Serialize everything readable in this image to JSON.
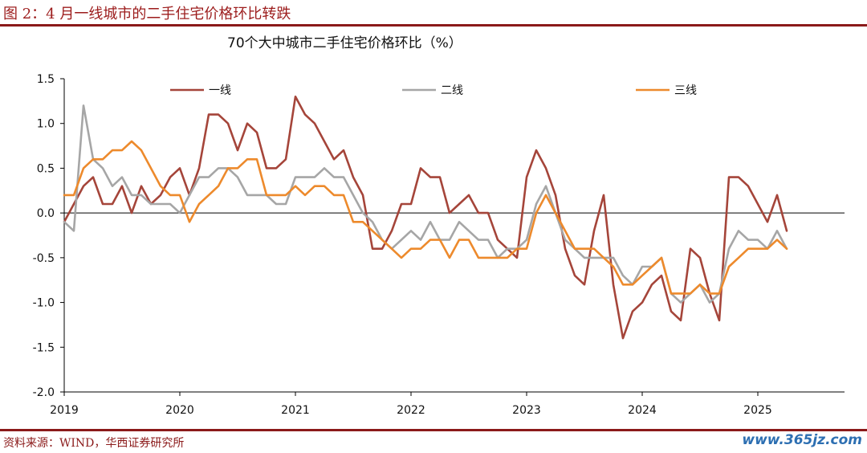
{
  "figure_title": "图 2：4 月一线城市的二手住宅价格环比转跌",
  "source": "资料来源：WIND，华西证券研究所",
  "watermark": "www.365jz.com",
  "colors": {
    "tier1": "#a5453a",
    "tier2": "#a6a6a6",
    "tier3": "#ed8a2c",
    "rule": "#8b1a1a"
  },
  "chart_data": {
    "type": "line",
    "title": "70个大中城市二手住宅价格环比（%）",
    "xlabel": "",
    "ylabel": "",
    "ylim": [
      -2.0,
      1.5
    ],
    "yticks": [
      1.5,
      1.0,
      0.5,
      0.0,
      -0.5,
      -1.0,
      -1.5,
      -2.0
    ],
    "ytick_labels": [
      "1.5",
      "1.0",
      "0.5",
      "0.0",
      "-0.5",
      "-1.0",
      "-1.5",
      "-2.0"
    ],
    "x_start": "2019-01",
    "xtick_labels": [
      "2019",
      "2020",
      "2021",
      "2022",
      "2023",
      "2024",
      "2025"
    ],
    "grid": false,
    "legend_position": "top",
    "series": [
      {
        "name": "一线",
        "color_key": "tier1",
        "values": [
          -0.1,
          0.1,
          0.3,
          0.4,
          0.1,
          0.1,
          0.3,
          0.0,
          0.3,
          0.1,
          0.2,
          0.4,
          0.5,
          0.2,
          0.5,
          1.1,
          1.1,
          1.0,
          0.7,
          1.0,
          0.9,
          0.5,
          0.5,
          0.6,
          1.3,
          1.1,
          1.0,
          0.8,
          0.6,
          0.7,
          0.4,
          0.2,
          -0.4,
          -0.4,
          -0.2,
          0.1,
          0.1,
          0.5,
          0.4,
          0.4,
          0.0,
          0.1,
          0.2,
          0.0,
          0.0,
          -0.3,
          -0.4,
          -0.5,
          0.4,
          0.7,
          0.5,
          0.2,
          -0.4,
          -0.7,
          -0.8,
          -0.2,
          0.2,
          -0.8,
          -1.4,
          -1.1,
          -1.0,
          -0.8,
          -0.7,
          -1.1,
          -1.2,
          -0.4,
          -0.5,
          -0.9,
          -1.2,
          0.4,
          0.4,
          0.3,
          0.1,
          -0.1,
          0.2,
          -0.2
        ]
      },
      {
        "name": "二线",
        "color_key": "tier2",
        "values": [
          -0.1,
          -0.2,
          1.2,
          0.6,
          0.5,
          0.3,
          0.4,
          0.2,
          0.2,
          0.1,
          0.1,
          0.1,
          0.0,
          0.2,
          0.4,
          0.4,
          0.5,
          0.5,
          0.4,
          0.2,
          0.2,
          0.2,
          0.1,
          0.1,
          0.4,
          0.4,
          0.4,
          0.5,
          0.4,
          0.4,
          0.2,
          0.0,
          -0.1,
          -0.3,
          -0.4,
          -0.3,
          -0.2,
          -0.3,
          -0.1,
          -0.3,
          -0.3,
          -0.1,
          -0.2,
          -0.3,
          -0.3,
          -0.5,
          -0.4,
          -0.4,
          -0.3,
          0.1,
          0.3,
          0.0,
          -0.3,
          -0.4,
          -0.5,
          -0.5,
          -0.5,
          -0.5,
          -0.7,
          -0.8,
          -0.6,
          -0.6,
          -0.5,
          -0.9,
          -1.0,
          -0.9,
          -0.8,
          -1.0,
          -0.9,
          -0.4,
          -0.2,
          -0.3,
          -0.3,
          -0.4,
          -0.2,
          -0.4
        ]
      },
      {
        "name": "三线",
        "color_key": "tier3",
        "values": [
          0.2,
          0.2,
          0.5,
          0.6,
          0.6,
          0.7,
          0.7,
          0.8,
          0.7,
          0.5,
          0.3,
          0.2,
          0.2,
          -0.1,
          0.1,
          0.2,
          0.3,
          0.5,
          0.5,
          0.6,
          0.6,
          0.2,
          0.2,
          0.2,
          0.3,
          0.2,
          0.3,
          0.3,
          0.2,
          0.2,
          -0.1,
          -0.1,
          -0.2,
          -0.3,
          -0.4,
          -0.5,
          -0.4,
          -0.4,
          -0.3,
          -0.3,
          -0.5,
          -0.3,
          -0.3,
          -0.5,
          -0.5,
          -0.5,
          -0.5,
          -0.4,
          -0.4,
          0.0,
          0.2,
          0.0,
          -0.2,
          -0.4,
          -0.4,
          -0.4,
          -0.5,
          -0.6,
          -0.8,
          -0.8,
          -0.7,
          -0.6,
          -0.5,
          -0.9,
          -0.9,
          -0.9,
          -0.8,
          -0.9,
          -0.9,
          -0.6,
          -0.5,
          -0.4,
          -0.4,
          -0.4,
          -0.3,
          -0.4
        ]
      }
    ]
  }
}
